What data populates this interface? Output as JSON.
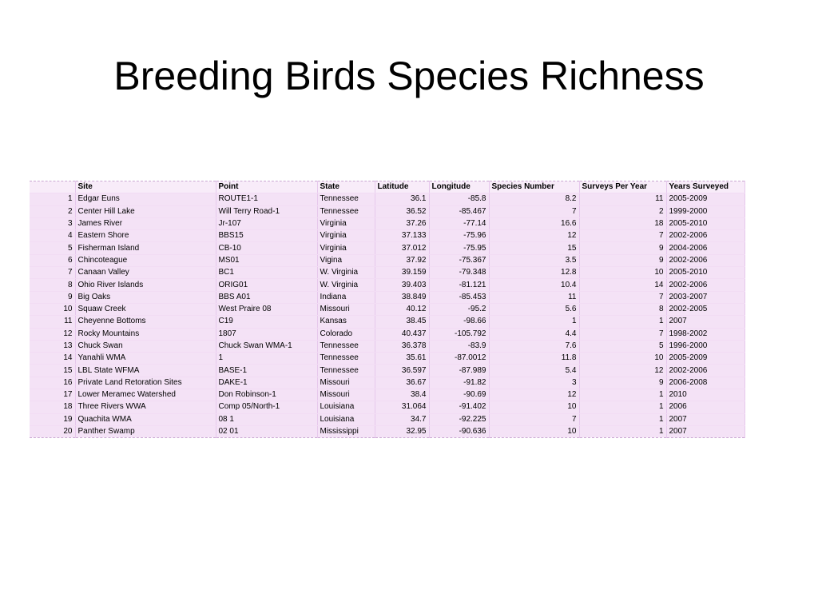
{
  "slide": {
    "title": "Breeding Birds Species Richness"
  },
  "table": {
    "headers": {
      "index": "",
      "site": "Site",
      "point": "Point",
      "state": "State",
      "latitude": "Latitude",
      "longitude": "Longitude",
      "species_number": "Species Number",
      "surveys_per_year": "Surveys Per Year",
      "years_surveyed": "Years Surveyed"
    },
    "rows": [
      {
        "index": "1",
        "site": "Edgar Euns",
        "point": "ROUTE1-1",
        "state": "Tennessee",
        "latitude": "36.1",
        "longitude": "-85.8",
        "species_number": "8.2",
        "surveys_per_year": "11",
        "years_surveyed": "2005-2009"
      },
      {
        "index": "2",
        "site": "Center Hill Lake",
        "point": "Will Terry Road-1",
        "state": "Tennessee",
        "latitude": "36.52",
        "longitude": "-85.467",
        "species_number": "7",
        "surveys_per_year": "2",
        "years_surveyed": "1999-2000"
      },
      {
        "index": "3",
        "site": "James River",
        "point": "Jr-107",
        "state": "Virginia",
        "latitude": "37.26",
        "longitude": "-77.14",
        "species_number": "16.6",
        "surveys_per_year": "18",
        "years_surveyed": "2005-2010"
      },
      {
        "index": "4",
        "site": "Eastern Shore",
        "point": "BBS15",
        "state": "Virginia",
        "latitude": "37.133",
        "longitude": "-75.96",
        "species_number": "12",
        "surveys_per_year": "7",
        "years_surveyed": "2002-2006"
      },
      {
        "index": "5",
        "site": "Fisherman Island",
        "point": "CB-10",
        "state": "Virginia",
        "latitude": "37.012",
        "longitude": "-75.95",
        "species_number": "15",
        "surveys_per_year": "9",
        "years_surveyed": "2004-2006"
      },
      {
        "index": "6",
        "site": "Chincoteague",
        "point": "MS01",
        "state": "Vigina",
        "latitude": "37.92",
        "longitude": "-75.367",
        "species_number": "3.5",
        "surveys_per_year": "9",
        "years_surveyed": "2002-2006"
      },
      {
        "index": "7",
        "site": "Canaan Valley",
        "point": "BC1",
        "state": "W. Virginia",
        "latitude": "39.159",
        "longitude": "-79.348",
        "species_number": "12.8",
        "surveys_per_year": "10",
        "years_surveyed": "2005-2010"
      },
      {
        "index": "8",
        "site": "Ohio River Islands",
        "point": "ORIG01",
        "state": "W. Virginia",
        "latitude": "39.403",
        "longitude": "-81.121",
        "species_number": "10.4",
        "surveys_per_year": "14",
        "years_surveyed": "2002-2006"
      },
      {
        "index": "9",
        "site": "Big Oaks",
        "point": "BBS A01",
        "state": "Indiana",
        "latitude": "38.849",
        "longitude": "-85.453",
        "species_number": "11",
        "surveys_per_year": "7",
        "years_surveyed": "2003-2007"
      },
      {
        "index": "10",
        "site": "Squaw Creek",
        "point": "West Praire 08",
        "state": "Missouri",
        "latitude": "40.12",
        "longitude": "-95.2",
        "species_number": "5.6",
        "surveys_per_year": "8",
        "years_surveyed": "2002-2005"
      },
      {
        "index": "11",
        "site": "Cheyenne Bottoms",
        "point": "C19",
        "state": "Kansas",
        "latitude": "38.45",
        "longitude": "-98.66",
        "species_number": "1",
        "surveys_per_year": "1",
        "years_surveyed": "2007"
      },
      {
        "index": "12",
        "site": "Rocky Mountains",
        "point": "1807",
        "state": "Colorado",
        "latitude": "40.437",
        "longitude": "-105.792",
        "species_number": "4.4",
        "surveys_per_year": "7",
        "years_surveyed": "1998-2002"
      },
      {
        "index": "13",
        "site": "Chuck Swan",
        "point": "Chuck Swan WMA-1",
        "state": "Tennessee",
        "latitude": "36.378",
        "longitude": "-83.9",
        "species_number": "7.6",
        "surveys_per_year": "5",
        "years_surveyed": "1996-2000"
      },
      {
        "index": "14",
        "site": "Yanahli WMA",
        "point": "1",
        "state": "Tennessee",
        "latitude": "35.61",
        "longitude": "-87.0012",
        "species_number": "11.8",
        "surveys_per_year": "10",
        "years_surveyed": "2005-2009"
      },
      {
        "index": "15",
        "site": "LBL State WFMA",
        "point": "BASE-1",
        "state": "Tennessee",
        "latitude": "36.597",
        "longitude": "-87.989",
        "species_number": "5.4",
        "surveys_per_year": "12",
        "years_surveyed": "2002-2006"
      },
      {
        "index": "16",
        "site": "Private Land Retoration Sites",
        "point": "DAKE-1",
        "state": "Missouri",
        "latitude": "36.67",
        "longitude": "-91.82",
        "species_number": "3",
        "surveys_per_year": "9",
        "years_surveyed": "2006-2008"
      },
      {
        "index": "17",
        "site": "Lower Meramec Watershed",
        "point": "Don Robinson-1",
        "state": "Missouri",
        "latitude": "38.4",
        "longitude": "-90.69",
        "species_number": "12",
        "surveys_per_year": "1",
        "years_surveyed": "2010"
      },
      {
        "index": "18",
        "site": "Three Rivers WWA",
        "point": "Comp 05/North-1",
        "state": "Louisiana",
        "latitude": "31.064",
        "longitude": "-91.402",
        "species_number": "10",
        "surveys_per_year": "1",
        "years_surveyed": "2006"
      },
      {
        "index": "19",
        "site": "Quachita WMA",
        "point": "08 1",
        "state": "Louisiana",
        "latitude": "34.7",
        "longitude": "-92.225",
        "species_number": "7",
        "surveys_per_year": "1",
        "years_surveyed": "2007"
      },
      {
        "index": "20",
        "site": "Panther Swamp",
        "point": "02 01",
        "state": "Mississippi",
        "latitude": "32.95",
        "longitude": "-90.636",
        "species_number": "10",
        "surveys_per_year": "1",
        "years_surveyed": "2007"
      }
    ]
  }
}
